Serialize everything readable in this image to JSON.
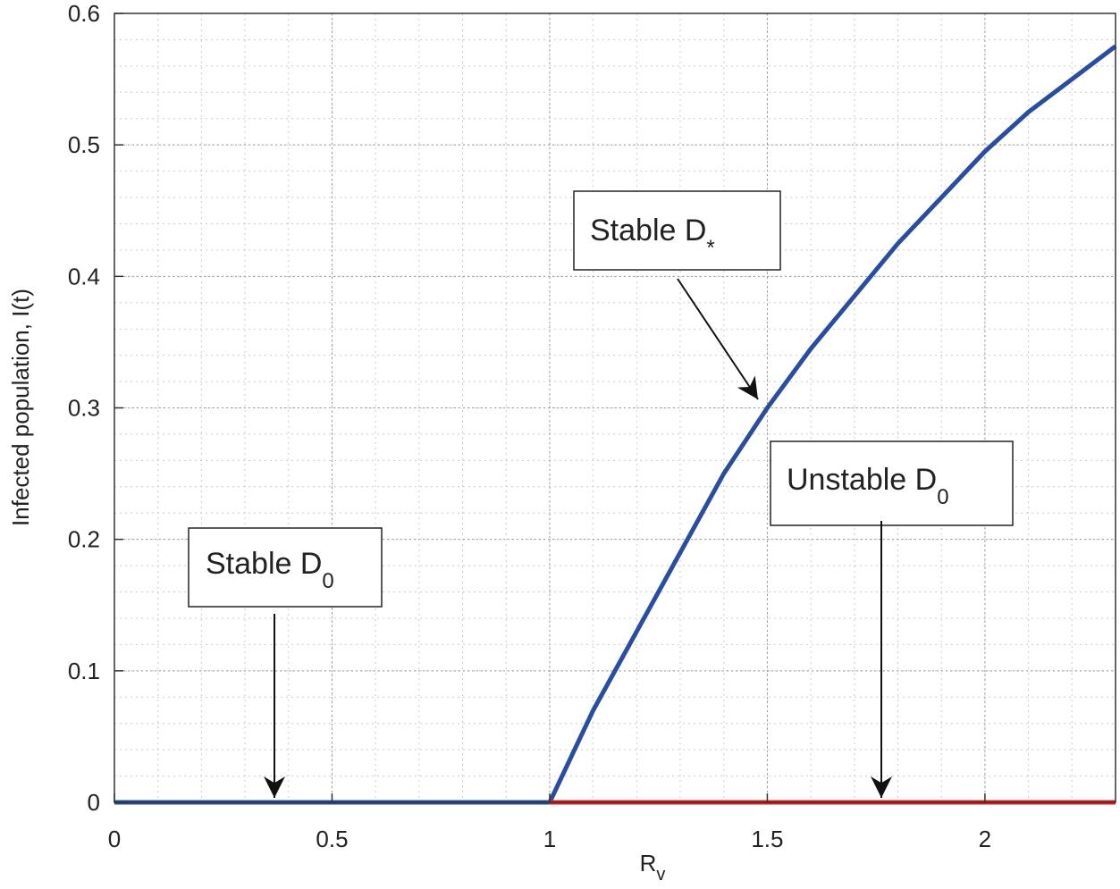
{
  "chart_data": {
    "type": "line",
    "xlabel": {
      "text": "R",
      "sub": "v"
    },
    "ylabel": "Infected population, I(t)",
    "xlim": [
      0,
      2.3
    ],
    "ylim": [
      0,
      0.6
    ],
    "xticks": [
      0,
      0.5,
      1,
      1.5,
      2
    ],
    "yticks": [
      0,
      0.1,
      0.2,
      0.3,
      0.4,
      0.5,
      0.6
    ],
    "grid": true,
    "minor_grid": true,
    "series": [
      {
        "color": "#2b4da0",
        "x": [
          0,
          1
        ],
        "values": [
          0,
          0
        ]
      },
      {
        "color": "#2b4da0",
        "x": [
          1,
          1.05,
          1.1,
          1.2,
          1.3,
          1.4,
          1.5,
          1.6,
          1.7,
          1.8,
          1.9,
          2.0,
          2.1,
          2.2,
          2.3
        ],
        "values": [
          0,
          0.035,
          0.07,
          0.13,
          0.19,
          0.25,
          0.3,
          0.345,
          0.385,
          0.425,
          0.46,
          0.495,
          0.525,
          0.55,
          0.575
        ]
      },
      {
        "color": "#e02020",
        "x": [
          1,
          2.3
        ],
        "values": [
          0,
          0
        ]
      }
    ],
    "annotations": [
      {
        "text": "Stable D",
        "sub": "0"
      },
      {
        "text": "Stable D",
        "sub": "*"
      },
      {
        "text": "Unstable D",
        "sub": "0"
      }
    ]
  }
}
